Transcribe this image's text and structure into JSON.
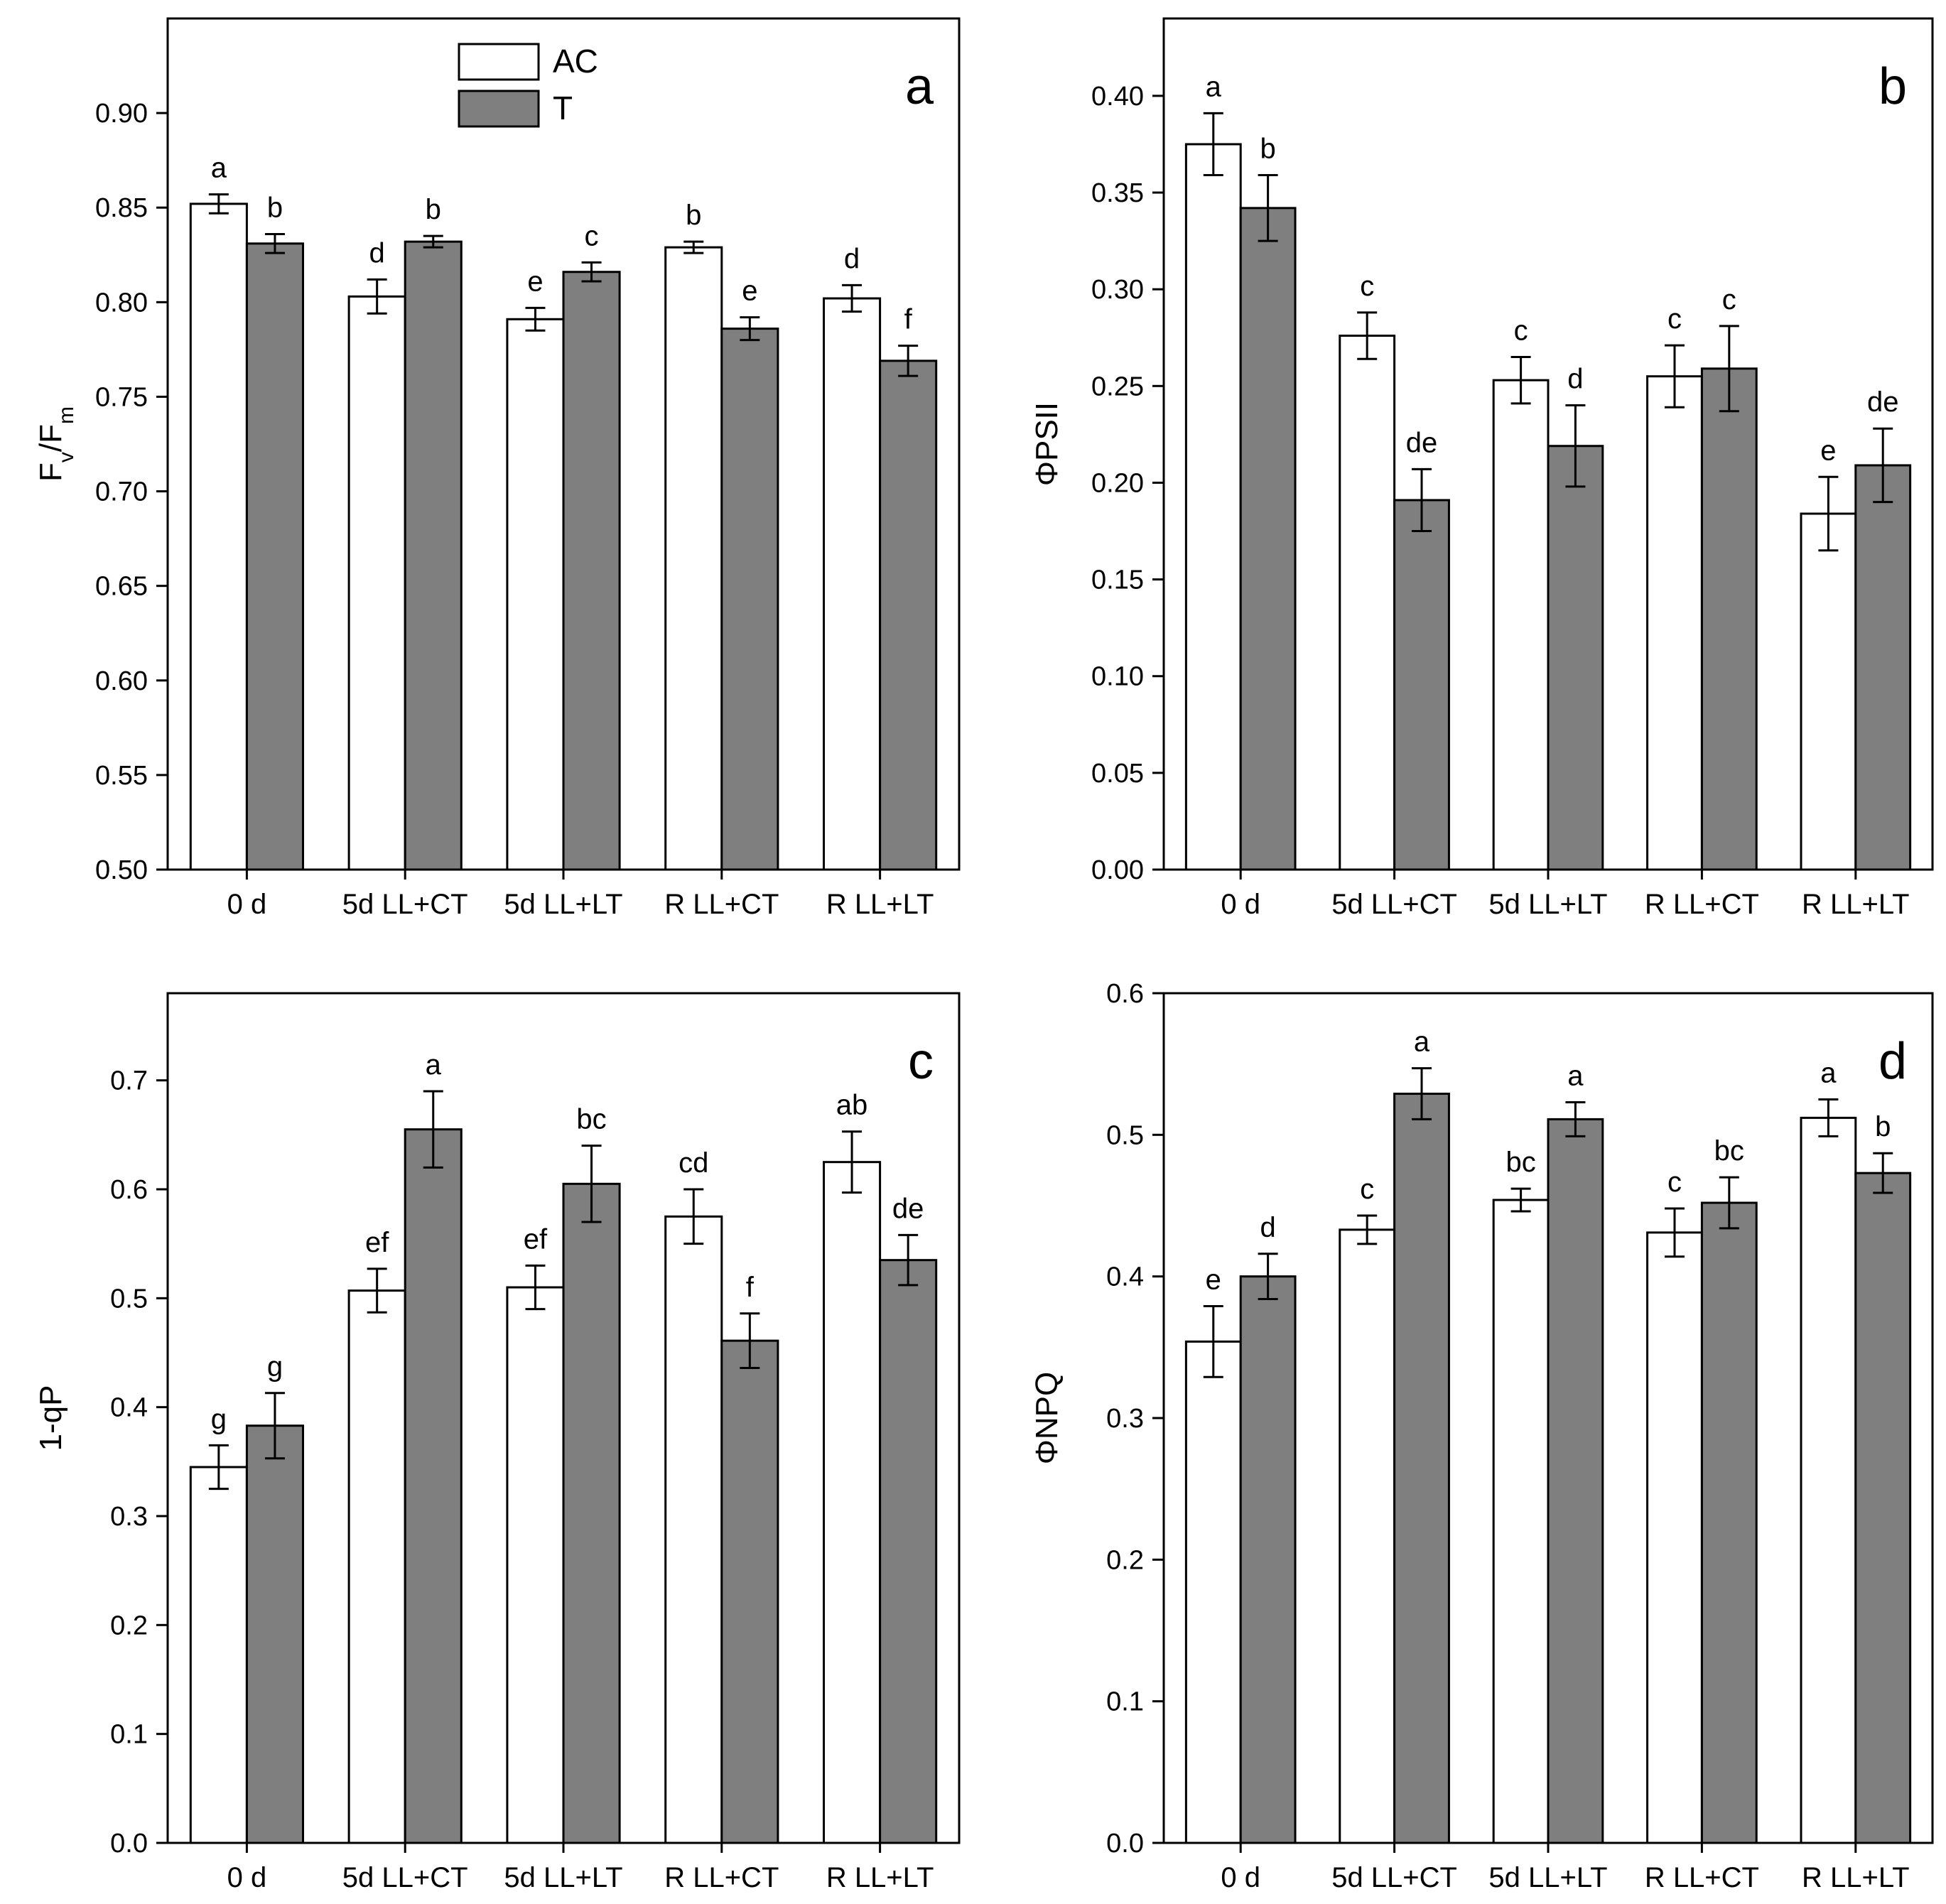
{
  "chart_data": [
    {
      "type": "bar",
      "panel": "a",
      "ylabel": "Fv/Fm",
      "ylabel_main": "F",
      "ylabel_sub_v": "v",
      "ylabel_sep": "/F",
      "ylabel_sub_m": "m",
      "ylim": [
        0.5,
        0.95
      ],
      "yticks": [
        "0.50",
        "0.55",
        "0.60",
        "0.65",
        "0.70",
        "0.75",
        "0.80",
        "0.85",
        "0.90"
      ],
      "categories": [
        "0 d",
        "5d LL+CT",
        "5d LL+LT",
        "R LL+CT",
        "R LL+LT"
      ],
      "legend": [
        "AC",
        "T"
      ],
      "series": [
        {
          "name": "AC",
          "values": [
            0.852,
            0.803,
            0.791,
            0.829,
            0.802
          ],
          "errors": [
            0.005,
            0.009,
            0.006,
            0.003,
            0.007
          ],
          "labels": [
            "a",
            "d",
            "e",
            "b",
            "d"
          ]
        },
        {
          "name": "T",
          "values": [
            0.831,
            0.832,
            0.816,
            0.786,
            0.769
          ],
          "errors": [
            0.005,
            0.003,
            0.005,
            0.006,
            0.008
          ],
          "labels": [
            "b",
            "b",
            "c",
            "e",
            "f"
          ]
        }
      ]
    },
    {
      "type": "bar",
      "panel": "b",
      "ylabel": "ΦPSII",
      "ylim": [
        0.0,
        0.44
      ],
      "yticks": [
        "0.00",
        "0.05",
        "0.10",
        "0.15",
        "0.20",
        "0.25",
        "0.30",
        "0.35",
        "0.40"
      ],
      "categories": [
        "0 d",
        "5d LL+CT",
        "5d LL+LT",
        "R LL+CT",
        "R LL+LT"
      ],
      "series": [
        {
          "name": "AC",
          "values": [
            0.375,
            0.276,
            0.253,
            0.255,
            0.184
          ],
          "errors": [
            0.016,
            0.012,
            0.012,
            0.016,
            0.019
          ],
          "labels": [
            "a",
            "c",
            "c",
            "c",
            "e"
          ]
        },
        {
          "name": "T",
          "values": [
            0.342,
            0.191,
            0.219,
            0.259,
            0.209
          ],
          "errors": [
            0.017,
            0.016,
            0.021,
            0.022,
            0.019
          ],
          "labels": [
            "b",
            "de",
            "d",
            "c",
            "de"
          ]
        }
      ]
    },
    {
      "type": "bar",
      "panel": "c",
      "ylabel": "1-qP",
      "ylim": [
        0.0,
        0.78
      ],
      "yticks": [
        "0.0",
        "0.1",
        "0.2",
        "0.3",
        "0.4",
        "0.5",
        "0.6",
        "0.7"
      ],
      "categories": [
        "0 d",
        "5d LL+CT",
        "5d LL+LT",
        "R LL+CT",
        "R LL+LT"
      ],
      "series": [
        {
          "name": "AC",
          "values": [
            0.345,
            0.507,
            0.51,
            0.575,
            0.625
          ],
          "errors": [
            0.02,
            0.02,
            0.02,
            0.025,
            0.028
          ],
          "labels": [
            "g",
            "ef",
            "ef",
            "cd",
            "ab"
          ]
        },
        {
          "name": "T",
          "values": [
            0.383,
            0.655,
            0.605,
            0.461,
            0.535
          ],
          "errors": [
            0.03,
            0.035,
            0.035,
            0.025,
            0.023
          ],
          "labels": [
            "g",
            "a",
            "bc",
            "f",
            "de"
          ]
        }
      ]
    },
    {
      "type": "bar",
      "panel": "d",
      "ylabel": "ΦNPQ",
      "ylim": [
        0.0,
        0.6
      ],
      "yticks": [
        "0.0",
        "0.1",
        "0.2",
        "0.3",
        "0.4",
        "0.5",
        "0.6"
      ],
      "categories": [
        "0 d",
        "5d LL+CT",
        "5d LL+LT",
        "R LL+CT",
        "R LL+LT"
      ],
      "series": [
        {
          "name": "AC",
          "values": [
            0.354,
            0.433,
            0.454,
            0.431,
            0.512
          ],
          "errors": [
            0.025,
            0.01,
            0.008,
            0.017,
            0.013
          ],
          "labels": [
            "e",
            "c",
            "bc",
            "c",
            "a"
          ]
        },
        {
          "name": "T",
          "values": [
            0.4,
            0.529,
            0.511,
            0.452,
            0.473
          ],
          "errors": [
            0.016,
            0.018,
            0.012,
            0.018,
            0.014
          ],
          "labels": [
            "d",
            "a",
            "a",
            "bc",
            "b"
          ]
        }
      ]
    }
  ],
  "colors": {
    "ac_fill": "#ffffff",
    "t_fill": "#7f7f7f",
    "stroke": "#000000"
  }
}
